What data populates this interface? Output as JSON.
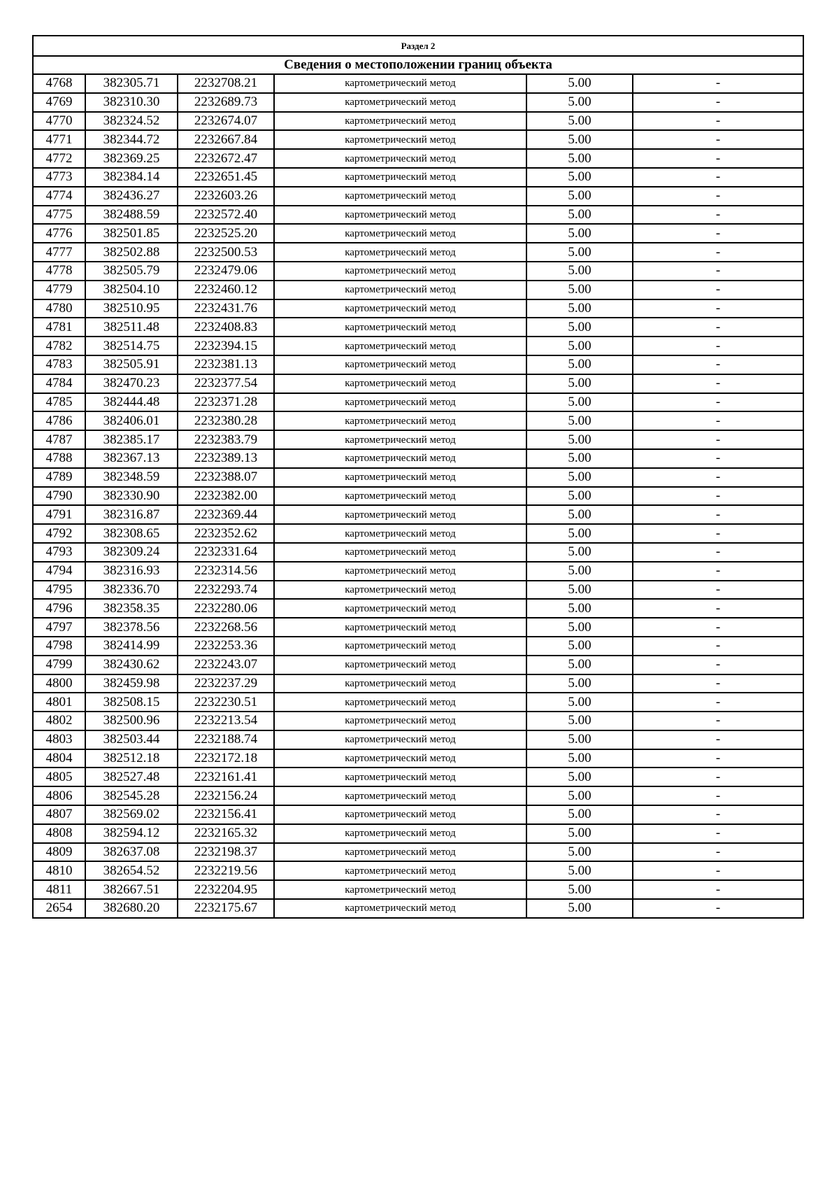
{
  "section_title": "Раздел 2",
  "section_subtitle": "Сведения о местоположении границ объекта",
  "rows": [
    [
      "4768",
      "382305.71",
      "2232708.21",
      "картометрический метод",
      "5.00",
      "-"
    ],
    [
      "4769",
      "382310.30",
      "2232689.73",
      "картометрический метод",
      "5.00",
      "-"
    ],
    [
      "4770",
      "382324.52",
      "2232674.07",
      "картометрический метод",
      "5.00",
      "-"
    ],
    [
      "4771",
      "382344.72",
      "2232667.84",
      "картометрический метод",
      "5.00",
      "-"
    ],
    [
      "4772",
      "382369.25",
      "2232672.47",
      "картометрический метод",
      "5.00",
      "-"
    ],
    [
      "4773",
      "382384.14",
      "2232651.45",
      "картометрический метод",
      "5.00",
      "-"
    ],
    [
      "4774",
      "382436.27",
      "2232603.26",
      "картометрический метод",
      "5.00",
      "-"
    ],
    [
      "4775",
      "382488.59",
      "2232572.40",
      "картометрический метод",
      "5.00",
      "-"
    ],
    [
      "4776",
      "382501.85",
      "2232525.20",
      "картометрический метод",
      "5.00",
      "-"
    ],
    [
      "4777",
      "382502.88",
      "2232500.53",
      "картометрический метод",
      "5.00",
      "-"
    ],
    [
      "4778",
      "382505.79",
      "2232479.06",
      "картометрический метод",
      "5.00",
      "-"
    ],
    [
      "4779",
      "382504.10",
      "2232460.12",
      "картометрический метод",
      "5.00",
      "-"
    ],
    [
      "4780",
      "382510.95",
      "2232431.76",
      "картометрический метод",
      "5.00",
      "-"
    ],
    [
      "4781",
      "382511.48",
      "2232408.83",
      "картометрический метод",
      "5.00",
      "-"
    ],
    [
      "4782",
      "382514.75",
      "2232394.15",
      "картометрический метод",
      "5.00",
      "-"
    ],
    [
      "4783",
      "382505.91",
      "2232381.13",
      "картометрический метод",
      "5.00",
      "-"
    ],
    [
      "4784",
      "382470.23",
      "2232377.54",
      "картометрический метод",
      "5.00",
      "-"
    ],
    [
      "4785",
      "382444.48",
      "2232371.28",
      "картометрический метод",
      "5.00",
      "-"
    ],
    [
      "4786",
      "382406.01",
      "2232380.28",
      "картометрический метод",
      "5.00",
      "-"
    ],
    [
      "4787",
      "382385.17",
      "2232383.79",
      "картометрический метод",
      "5.00",
      "-"
    ],
    [
      "4788",
      "382367.13",
      "2232389.13",
      "картометрический метод",
      "5.00",
      "-"
    ],
    [
      "4789",
      "382348.59",
      "2232388.07",
      "картометрический метод",
      "5.00",
      "-"
    ],
    [
      "4790",
      "382330.90",
      "2232382.00",
      "картометрический метод",
      "5.00",
      "-"
    ],
    [
      "4791",
      "382316.87",
      "2232369.44",
      "картометрический метод",
      "5.00",
      "-"
    ],
    [
      "4792",
      "382308.65",
      "2232352.62",
      "картометрический метод",
      "5.00",
      "-"
    ],
    [
      "4793",
      "382309.24",
      "2232331.64",
      "картометрический метод",
      "5.00",
      "-"
    ],
    [
      "4794",
      "382316.93",
      "2232314.56",
      "картометрический метод",
      "5.00",
      "-"
    ],
    [
      "4795",
      "382336.70",
      "2232293.74",
      "картометрический метод",
      "5.00",
      "-"
    ],
    [
      "4796",
      "382358.35",
      "2232280.06",
      "картометрический метод",
      "5.00",
      "-"
    ],
    [
      "4797",
      "382378.56",
      "2232268.56",
      "картометрический метод",
      "5.00",
      "-"
    ],
    [
      "4798",
      "382414.99",
      "2232253.36",
      "картометрический метод",
      "5.00",
      "-"
    ],
    [
      "4799",
      "382430.62",
      "2232243.07",
      "картометрический метод",
      "5.00",
      "-"
    ],
    [
      "4800",
      "382459.98",
      "2232237.29",
      "картометрический метод",
      "5.00",
      "-"
    ],
    [
      "4801",
      "382508.15",
      "2232230.51",
      "картометрический метод",
      "5.00",
      "-"
    ],
    [
      "4802",
      "382500.96",
      "2232213.54",
      "картометрический метод",
      "5.00",
      "-"
    ],
    [
      "4803",
      "382503.44",
      "2232188.74",
      "картометрический метод",
      "5.00",
      "-"
    ],
    [
      "4804",
      "382512.18",
      "2232172.18",
      "картометрический метод",
      "5.00",
      "-"
    ],
    [
      "4805",
      "382527.48",
      "2232161.41",
      "картометрический метод",
      "5.00",
      "-"
    ],
    [
      "4806",
      "382545.28",
      "2232156.24",
      "картометрический метод",
      "5.00",
      "-"
    ],
    [
      "4807",
      "382569.02",
      "2232156.41",
      "картометрический метод",
      "5.00",
      "-"
    ],
    [
      "4808",
      "382594.12",
      "2232165.32",
      "картометрический метод",
      "5.00",
      "-"
    ],
    [
      "4809",
      "382637.08",
      "2232198.37",
      "картометрический метод",
      "5.00",
      "-"
    ],
    [
      "4810",
      "382654.52",
      "2232219.56",
      "картометрический метод",
      "5.00",
      "-"
    ],
    [
      "4811",
      "382667.51",
      "2232204.95",
      "картометрический метод",
      "5.00",
      "-"
    ],
    [
      "2654",
      "382680.20",
      "2232175.67",
      "картометрический метод",
      "5.00",
      "-"
    ]
  ]
}
